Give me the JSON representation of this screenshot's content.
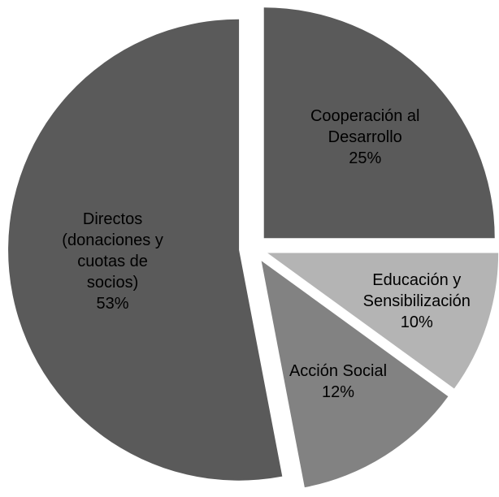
{
  "chart_data": {
    "type": "pie",
    "categories": [
      "Cooperación al Desarrollo",
      "Educación y Sensibilización",
      "Acción Social",
      "Directos (donaciones y cuotas de socios)"
    ],
    "values": [
      25,
      10,
      12,
      53
    ],
    "value_labels": [
      "25%",
      "10%",
      "12%",
      "53%"
    ],
    "colors": [
      "#5a5a5a",
      "#b4b4b4",
      "#828282",
      "#5a5a5a"
    ]
  }
}
